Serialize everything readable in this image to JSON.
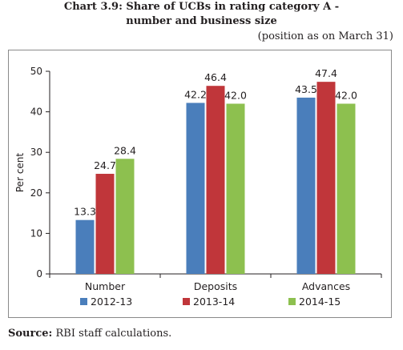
{
  "header": {
    "title_line1": "Chart 3.9: Share of UCBs in rating category A -",
    "title_line2": "number and business size",
    "note": "(position as on March 31)"
  },
  "footer": {
    "source_label": "Source:",
    "source_text": " RBI staff calculations."
  },
  "chart_data": {
    "type": "bar",
    "title": "Chart 3.9: Share of UCBs in rating category A - number and business size",
    "xlabel": "",
    "ylabel": "Per cent",
    "ylim": [
      0,
      50
    ],
    "yticks": [
      0,
      10,
      20,
      30,
      40,
      50
    ],
    "categories": [
      "Number",
      "Deposits",
      "Advances"
    ],
    "series": [
      {
        "name": "2012-13",
        "color": "#4a7ebb",
        "values": [
          13.3,
          42.2,
          43.5
        ]
      },
      {
        "name": "2013-14",
        "color": "#c0363a",
        "values": [
          24.7,
          46.4,
          47.4
        ]
      },
      {
        "name": "2014-15",
        "color": "#8dc04f",
        "values": [
          28.4,
          42.0,
          42.0
        ]
      }
    ],
    "value_labels": [
      [
        "13.3",
        "42.2",
        "43.5"
      ],
      [
        "24.7",
        "46.4",
        "47.4"
      ],
      [
        "28.4",
        "42.0",
        "42.0"
      ]
    ],
    "legend_position": "bottom",
    "grid": false
  }
}
